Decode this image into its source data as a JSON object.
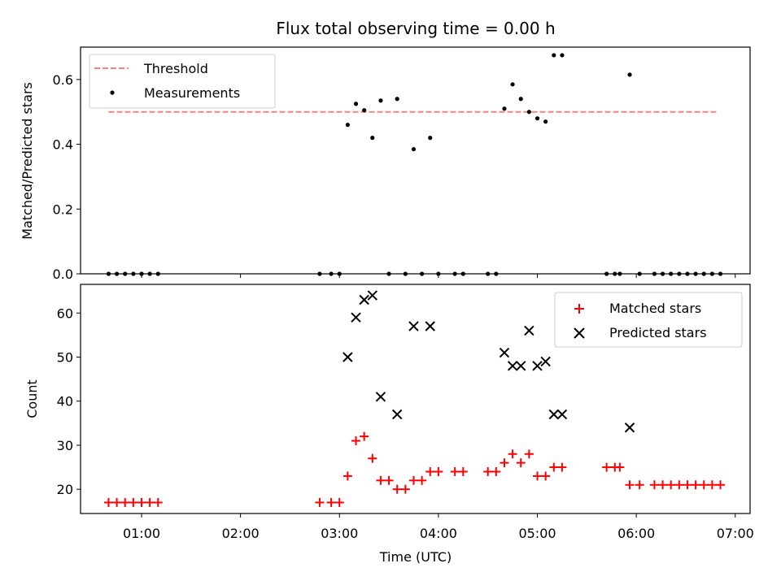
{
  "figure": {
    "title": "Flux total observing time = 0.00 h"
  },
  "chart_data": [
    {
      "type": "scatter",
      "ylabel": "Matched/Predicted stars",
      "xlabel": "",
      "xlim": [
        "00:23",
        "07:09"
      ],
      "ylim": [
        0,
        0.7
      ],
      "yticks": [
        0.0,
        0.2,
        0.4,
        0.6
      ],
      "ytick_labels": [
        "0.0",
        "0.2",
        "0.4",
        "0.6"
      ],
      "grid": false,
      "legend": {
        "placement": "top-left",
        "entries": [
          "Threshold",
          "Measurements"
        ]
      },
      "series": [
        {
          "name": "Threshold",
          "style": "dashed-line",
          "color": "#ff7f7f",
          "x": [
            "00:40",
            "06:50"
          ],
          "y": [
            0.5,
            0.5
          ]
        },
        {
          "name": "Measurements",
          "style": "dot",
          "color": "#000000",
          "x": [
            "00:40",
            "00:45",
            "00:50",
            "00:55",
            "01:00",
            "01:05",
            "01:10",
            "02:48",
            "02:55",
            "03:00",
            "03:05",
            "03:10",
            "03:15",
            "03:20",
            "03:25",
            "03:30",
            "03:35",
            "03:40",
            "03:45",
            "03:50",
            "03:55",
            "04:00",
            "04:10",
            "04:15",
            "04:30",
            "04:35",
            "04:40",
            "04:45",
            "04:50",
            "04:55",
            "05:00",
            "05:05",
            "05:10",
            "05:15",
            "05:42",
            "05:47",
            "05:50",
            "05:56",
            "06:02",
            "06:11",
            "06:16",
            "06:21",
            "06:26",
            "06:31",
            "06:36",
            "06:41",
            "06:46",
            "06:51"
          ],
          "y": [
            0,
            0,
            0,
            0,
            0,
            0,
            0,
            0,
            0,
            0,
            0.46,
            0.525,
            0.505,
            0.42,
            0.535,
            0,
            0.54,
            0,
            0.385,
            0,
            0.42,
            0,
            0,
            0,
            0,
            0,
            0.51,
            0.585,
            0.54,
            0.5,
            0.48,
            0.47,
            0.675,
            0.675,
            0,
            0,
            0,
            0.615,
            0,
            0,
            0,
            0,
            0,
            0,
            0,
            0,
            0,
            0
          ]
        }
      ]
    },
    {
      "type": "scatter",
      "ylabel": "Count",
      "xlabel": "Time (UTC)",
      "xlim": [
        "00:23",
        "07:09"
      ],
      "ylim": [
        14.5,
        66.5
      ],
      "yticks": [
        20,
        30,
        40,
        50,
        60
      ],
      "ytick_labels": [
        "20",
        "30",
        "40",
        "50",
        "60"
      ],
      "xticks": [
        "01:00",
        "02:00",
        "03:00",
        "04:00",
        "05:00",
        "06:00",
        "07:00"
      ],
      "xtick_labels": [
        "01:00",
        "02:00",
        "03:00",
        "04:00",
        "05:00",
        "06:00",
        "07:00"
      ],
      "grid": false,
      "legend": {
        "placement": "top-right",
        "entries": [
          "Matched stars",
          "Predicted stars"
        ]
      },
      "series": [
        {
          "name": "Matched stars",
          "style": "plus",
          "color": "#ff0000",
          "x": [
            "00:40",
            "00:45",
            "00:50",
            "00:55",
            "01:00",
            "01:05",
            "01:10",
            "02:48",
            "02:55",
            "03:00",
            "03:05",
            "03:10",
            "03:15",
            "03:20",
            "03:25",
            "03:30",
            "03:35",
            "03:40",
            "03:45",
            "03:50",
            "03:55",
            "04:00",
            "04:10",
            "04:15",
            "04:30",
            "04:35",
            "04:40",
            "04:45",
            "04:50",
            "04:55",
            "05:00",
            "05:05",
            "05:10",
            "05:15",
            "05:42",
            "05:47",
            "05:50",
            "05:56",
            "06:02",
            "06:11",
            "06:16",
            "06:21",
            "06:26",
            "06:31",
            "06:36",
            "06:41",
            "06:46",
            "06:51"
          ],
          "y": [
            17,
            17,
            17,
            17,
            17,
            17,
            17,
            17,
            17,
            17,
            23,
            31,
            32,
            27,
            22,
            22,
            20,
            20,
            22,
            22,
            24,
            24,
            24,
            24,
            24,
            24,
            26,
            28,
            26,
            28,
            23,
            23,
            25,
            25,
            25,
            25,
            25,
            21,
            21,
            21,
            21,
            21,
            21,
            21,
            21,
            21,
            21,
            21
          ]
        },
        {
          "name": "Predicted stars",
          "style": "x",
          "color": "#000000",
          "x": [
            "03:05",
            "03:10",
            "03:15",
            "03:20",
            "03:25",
            "03:35",
            "03:45",
            "03:55",
            "04:40",
            "04:45",
            "04:50",
            "04:55",
            "05:00",
            "05:05",
            "05:10",
            "05:15",
            "05:56"
          ],
          "y": [
            50,
            59,
            63,
            64,
            41,
            37,
            57,
            57,
            51,
            48,
            48,
            56,
            48,
            49,
            37,
            37,
            34
          ]
        }
      ]
    }
  ]
}
